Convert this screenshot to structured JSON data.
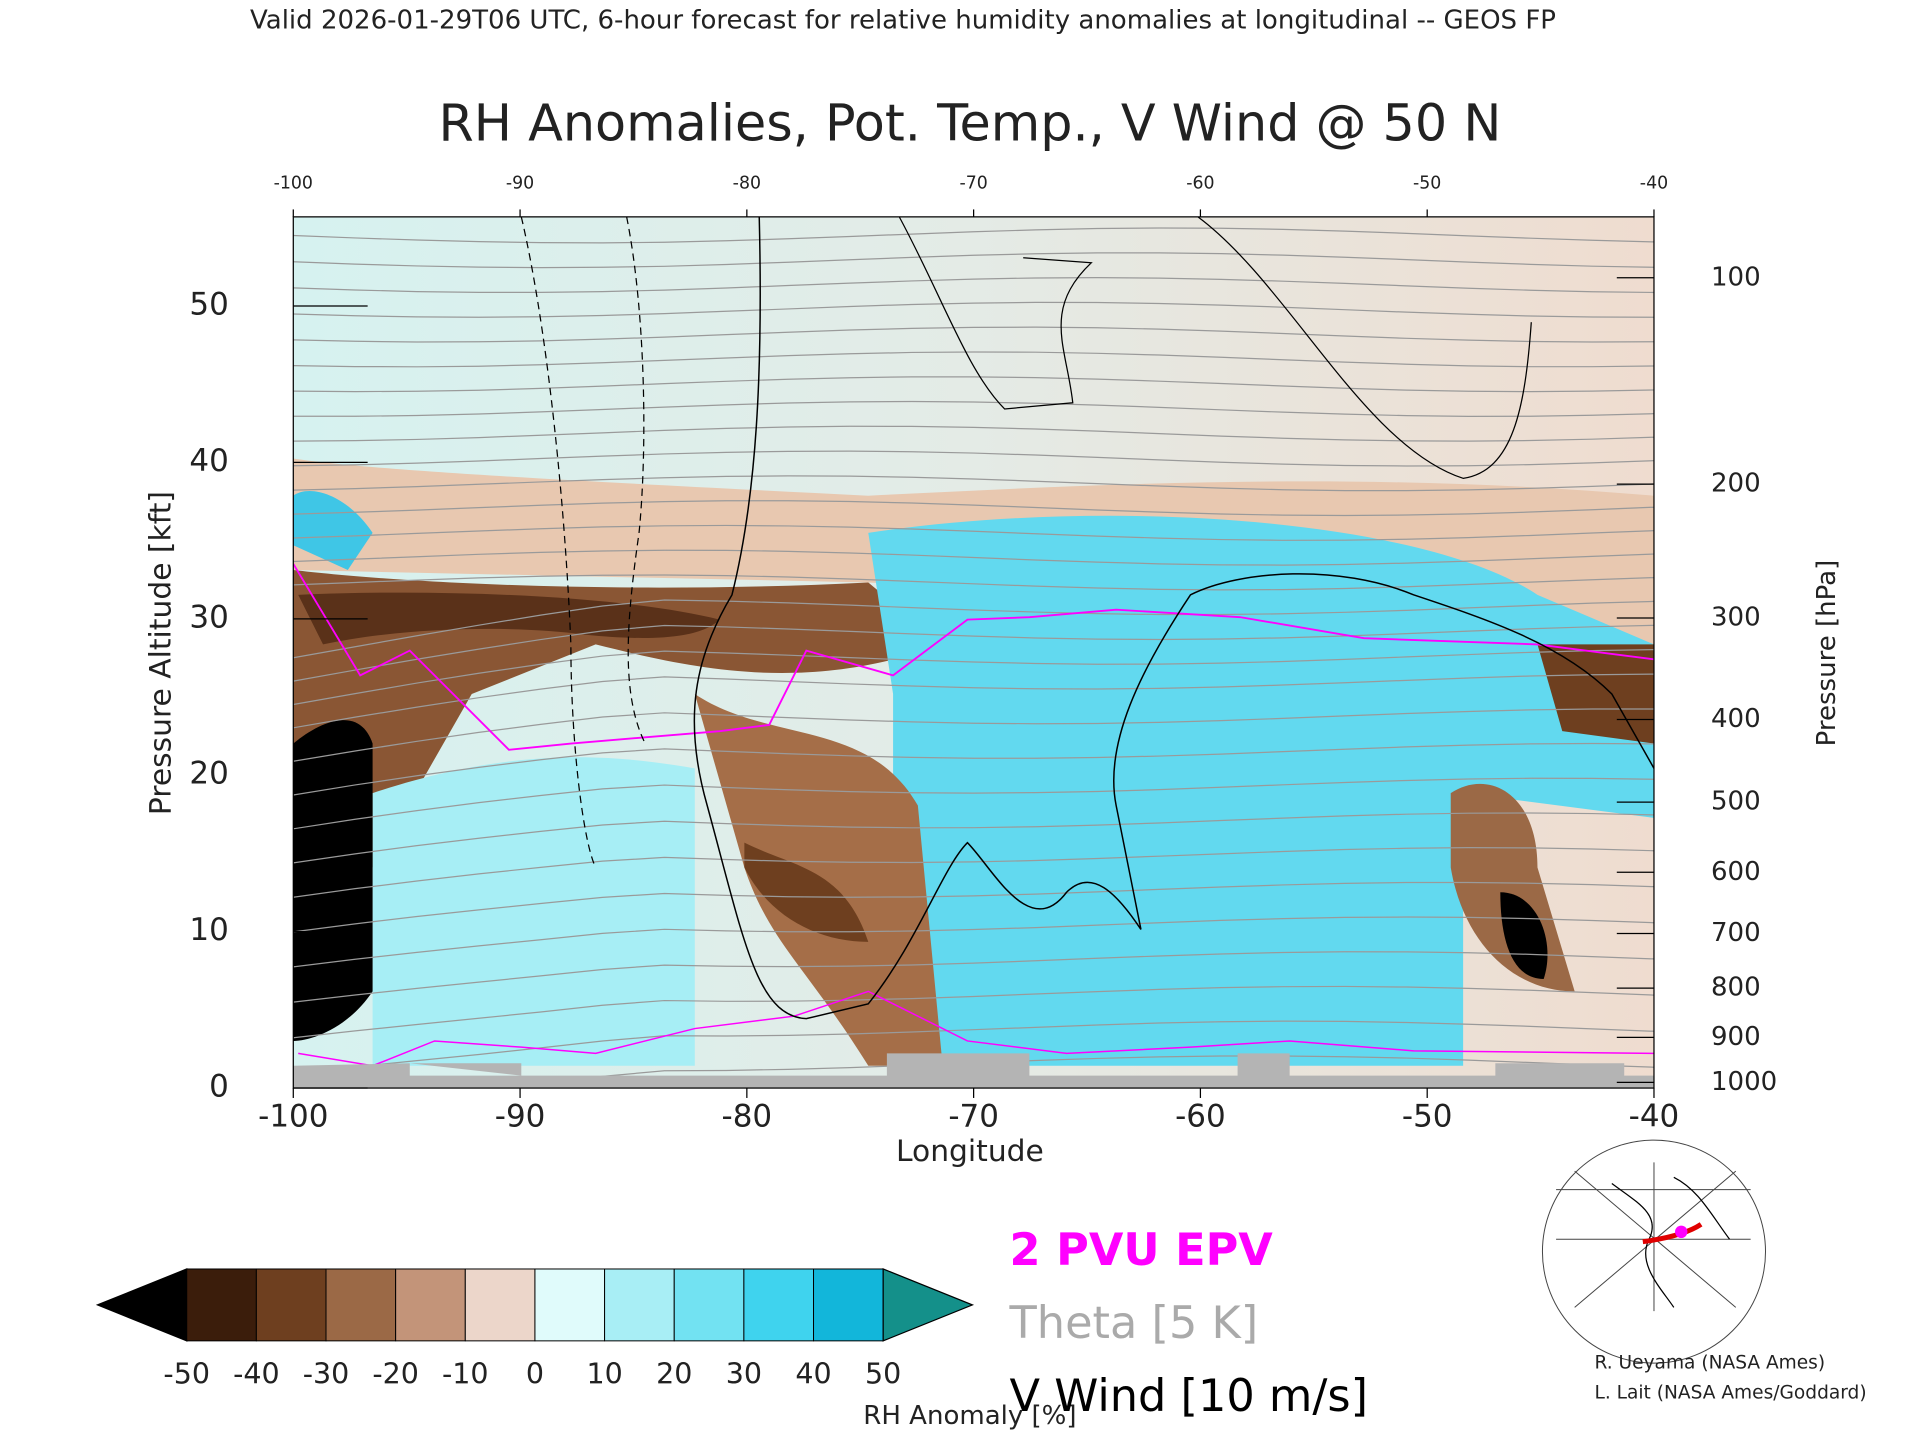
{
  "header": "Valid 2026-01-29T06 UTC, 6-hour forecast for relative humidity anomalies at longitudinal -- GEOS FP",
  "chart_data": {
    "type": "contour",
    "title": "RH Anomalies, Pot. Temp., V Wind @ 50 N",
    "x_label": "Longitude",
    "y_label": "Pressure Altitude [kft]",
    "y2_label": "Pressure [hPa]",
    "xlim": [
      -100,
      -40
    ],
    "xticks": [
      -100,
      -90,
      -80,
      -70,
      -60,
      -50,
      -40
    ],
    "ylim": [
      0,
      55.7
    ],
    "yticks": [
      0,
      10,
      20,
      30,
      40,
      50
    ],
    "y2ticks": [
      100,
      200,
      300,
      400,
      500,
      600,
      700,
      800,
      900,
      1000
    ],
    "colorbar": {
      "label": "RH Anomaly [%]",
      "ticks": [
        -50,
        -40,
        -30,
        -20,
        -10,
        0,
        10,
        20,
        30,
        40,
        50
      ],
      "colors": [
        "#000000",
        "#3b1d0b",
        "#6e3f1f",
        "#9b6946",
        "#c39479",
        "#ecd6ca",
        "#e0fbfb",
        "#a8eef5",
        "#72e2f2",
        "#3fd3ee",
        "#12b6da",
        "#14908a"
      ]
    },
    "legend": [
      {
        "name": "2 PVU EPV",
        "color": "#ff00ff"
      },
      {
        "name": "Theta [5 K]",
        "color": "#aaaaaa"
      },
      {
        "name": "V Wind [10 m/s]",
        "color": "#000000"
      }
    ]
  },
  "credits": [
    "R. Ueyama (NASA Ames)",
    "L. Lait (NASA Ames/Goddard)"
  ]
}
